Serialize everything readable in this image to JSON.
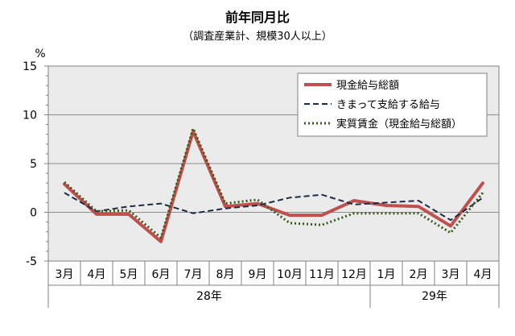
{
  "chart_data": {
    "type": "line",
    "title": "前年同月比",
    "subtitle": "（調査産業計、規模30人以上）",
    "ylabel": "%",
    "ylim": [
      -5,
      15
    ],
    "yticks": [
      -5,
      0,
      5,
      10,
      15
    ],
    "grid": true,
    "legend_position": "top-right",
    "categories": [
      "3月",
      "4月",
      "5月",
      "6月",
      "7月",
      "8月",
      "9月",
      "10月",
      "11月",
      "12月",
      "1月",
      "2月",
      "3月",
      "4月"
    ],
    "year_groups": [
      {
        "label": "28年",
        "count": 10
      },
      {
        "label": "29年",
        "count": 4
      }
    ],
    "series": [
      {
        "name": "現金給与総額",
        "color": "#c0504d",
        "style": "solid",
        "values": [
          2.9,
          -0.2,
          -0.2,
          -3.0,
          8.3,
          0.6,
          0.9,
          -0.3,
          -0.3,
          1.2,
          0.7,
          0.6,
          -1.4,
          3.0
        ]
      },
      {
        "name": "きまって支給する給与",
        "color": "#1f2a44",
        "style": "dashed",
        "values": [
          2.0,
          0.1,
          0.6,
          0.9,
          -0.1,
          0.4,
          0.7,
          1.5,
          1.8,
          0.8,
          1.0,
          1.2,
          -0.8,
          1.5
        ]
      },
      {
        "name": "実質賃金（現金給与総額）",
        "color": "#3a5a1a",
        "style": "dotted",
        "values": [
          3.1,
          0.1,
          0.2,
          -2.6,
          8.6,
          0.9,
          1.3,
          -1.1,
          -1.3,
          -0.1,
          -0.1,
          -0.1,
          -2.1,
          2.0
        ]
      }
    ]
  }
}
